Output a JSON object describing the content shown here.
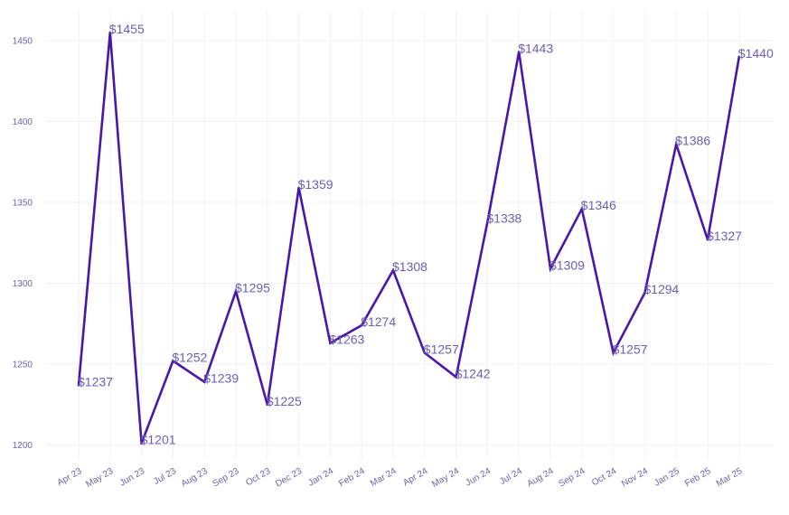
{
  "chart_data": {
    "type": "line",
    "title": "",
    "xlabel": "",
    "ylabel": "",
    "categories": [
      "Apr 23",
      "May 23",
      "Jun 23",
      "Jul 23",
      "Aug 23",
      "Sep 23",
      "Oct 23",
      "Dec 23",
      "Jan 24",
      "Feb 24",
      "Mar 24",
      "Apr 24",
      "May 24",
      "Jun 24",
      "Jul 24",
      "Aug 24",
      "Sep 24",
      "Oct 24",
      "Nov 24",
      "Jan 25",
      "Feb 25",
      "Mar 25"
    ],
    "series": [
      {
        "values": [
          1237,
          1455,
          1201,
          1252,
          1239,
          1295,
          1225,
          1359,
          1263,
          1274,
          1308,
          1257,
          1242,
          1338,
          1443,
          1309,
          1346,
          1257,
          1294,
          1386,
          1327,
          1440
        ]
      }
    ],
    "data_labels": [
      "$1237",
      "$1455",
      "$1201",
      "$1252",
      "$1239",
      "$1295",
      "$1225",
      "$1359",
      "$1263",
      "$1274",
      "$1308",
      "$1257",
      "$1242",
      "$1338",
      "$1443",
      "$1309",
      "$1346",
      "$1257",
      "$1294",
      "$1386",
      "$1327",
      "$1440"
    ],
    "y_ticks": [
      1200,
      1250,
      1300,
      1350,
      1400,
      1450
    ],
    "ylim": [
      1194,
      1468
    ],
    "grid": true,
    "legend": "none",
    "colors": {
      "line": "#4a17a6",
      "label": "#6b5fb3",
      "tick": "#6b63a8",
      "grid": "#f1f1f4"
    }
  }
}
